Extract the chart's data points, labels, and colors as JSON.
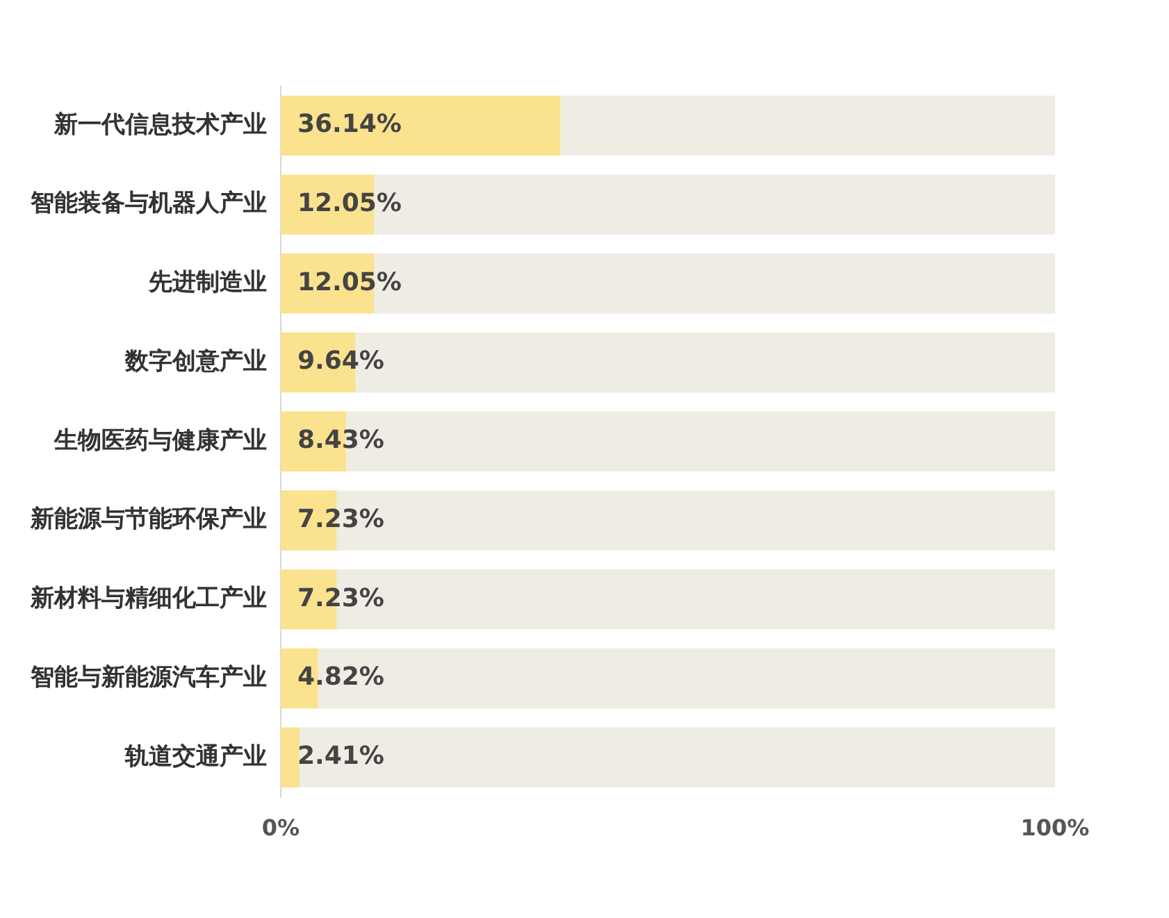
{
  "chart_data": {
    "type": "bar",
    "orientation": "horizontal",
    "stacked": true,
    "categories": [
      "新一代信息技术产业",
      "智能装备与机器人产业",
      "先进制造业",
      "数字创意产业",
      "生物医药与健康产业",
      "新能源与节能环保产业",
      "新材料与精细化工产业",
      "智能与新能源汽车产业",
      "轨道交通产业"
    ],
    "series": [
      {
        "color": "#fae28f",
        "values": [
          36.14,
          12.05,
          12.05,
          9.64,
          8.43,
          7.23,
          7.23,
          4.82,
          2.41
        ],
        "value_labels": [
          "36.14%",
          "12.05%",
          "12.05%",
          "9.64%",
          "8.43%",
          "7.23%",
          "7.23%",
          "4.82%",
          "2.41%"
        ]
      },
      {
        "color": "#efece4",
        "values": [
          63.86,
          87.95,
          87.95,
          90.36,
          91.57,
          92.77,
          92.77,
          95.18,
          97.59
        ]
      }
    ],
    "xlim": [
      0,
      100
    ],
    "xticks": [
      {
        "value": 0,
        "label": "0%"
      },
      {
        "value": 100,
        "label": "100%"
      }
    ],
    "grid": false,
    "legend": false
  }
}
